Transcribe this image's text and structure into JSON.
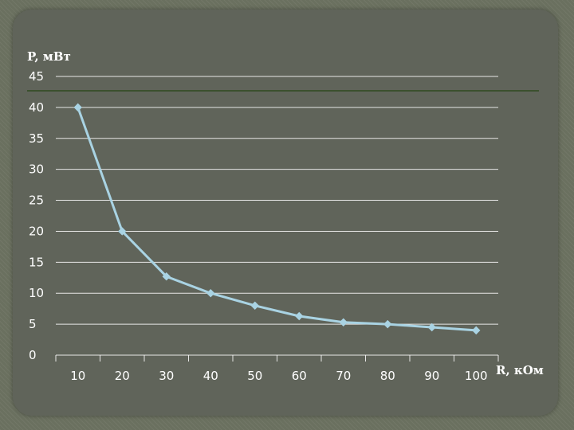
{
  "chart_data": {
    "type": "line",
    "xlabel": "R, кОм",
    "ylabel": "P, мВт",
    "categories": [
      "10",
      "20",
      "30",
      "40",
      "50",
      "60",
      "70",
      "80",
      "90",
      "100"
    ],
    "series": [
      {
        "values": [
          40,
          20,
          12.7,
          10,
          8,
          6.3,
          5.3,
          5,
          4.5,
          4
        ]
      }
    ],
    "ylim": [
      0,
      45
    ],
    "yticks": [
      "0",
      "5",
      "10",
      "15",
      "20",
      "25",
      "30",
      "35",
      "40",
      "45"
    ],
    "grid": true,
    "legend": "none",
    "colors": {
      "line": "#a9d3e3",
      "grid": "#ffffff",
      "background": "#60645a",
      "accent_line": "#2f4a1f"
    }
  }
}
